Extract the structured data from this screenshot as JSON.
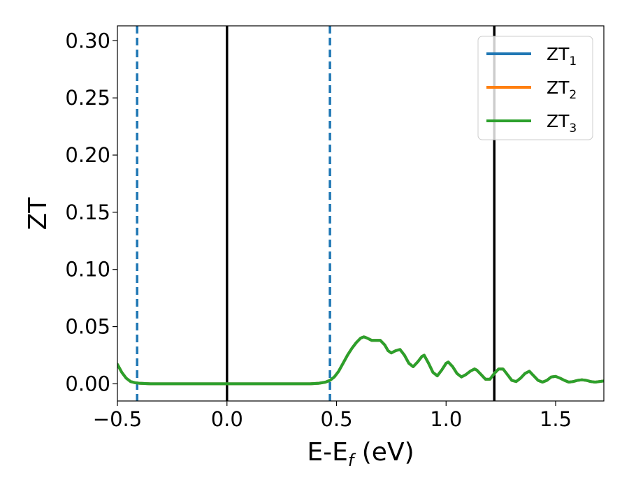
{
  "chart_data": {
    "type": "line",
    "xlabel": {
      "main": "E-E",
      "sub": "f",
      "tail": " (eV)"
    },
    "ylabel": "ZT",
    "xlim": [
      -0.5,
      1.72
    ],
    "ylim": [
      -0.015,
      0.313
    ],
    "xticks": [
      -0.5,
      0.0,
      0.5,
      1.0,
      1.5
    ],
    "xtick_labels": [
      "−0.5",
      "0.0",
      "0.5",
      "1.0",
      "1.5"
    ],
    "yticks": [
      0.0,
      0.05,
      0.1,
      0.15,
      0.2,
      0.25,
      0.3
    ],
    "ytick_labels": [
      "0.00",
      "0.05",
      "0.10",
      "0.15",
      "0.20",
      "0.25",
      "0.30"
    ],
    "grid": false,
    "legend_position": "top-right",
    "series": [
      {
        "name": {
          "main": "ZT",
          "sub": "1"
        },
        "color": "#1f77b4",
        "values_same_as": "ZT3"
      },
      {
        "name": {
          "main": "ZT",
          "sub": "2"
        },
        "color": "#ff7f0e",
        "values_same_as": "ZT3"
      },
      {
        "name": {
          "main": "ZT",
          "sub": "3"
        },
        "color": "#2ca02c",
        "x": [
          -0.5,
          -0.48,
          -0.46,
          -0.44,
          -0.42,
          -0.4,
          -0.35,
          -0.3,
          -0.2,
          -0.1,
          0.0,
          0.1,
          0.2,
          0.3,
          0.38,
          0.42,
          0.45,
          0.47,
          0.49,
          0.51,
          0.53,
          0.55,
          0.57,
          0.59,
          0.61,
          0.625,
          0.64,
          0.66,
          0.68,
          0.7,
          0.72,
          0.735,
          0.75,
          0.77,
          0.79,
          0.81,
          0.83,
          0.85,
          0.87,
          0.89,
          0.9,
          0.92,
          0.94,
          0.96,
          0.98,
          1.0,
          1.01,
          1.03,
          1.05,
          1.07,
          1.09,
          1.11,
          1.13,
          1.14,
          1.16,
          1.18,
          1.2,
          1.22,
          1.24,
          1.26,
          1.28,
          1.3,
          1.32,
          1.34,
          1.36,
          1.38,
          1.4,
          1.42,
          1.44,
          1.46,
          1.48,
          1.5,
          1.52,
          1.54,
          1.56,
          1.58,
          1.6,
          1.62,
          1.64,
          1.66,
          1.68,
          1.7,
          1.72
        ],
        "y": [
          0.017,
          0.01,
          0.005,
          0.002,
          0.001,
          0.0005,
          0.0,
          0.0,
          0.0,
          0.0,
          0.0,
          0.0,
          0.0,
          0.0,
          0.0,
          0.0005,
          0.0015,
          0.003,
          0.006,
          0.011,
          0.018,
          0.025,
          0.031,
          0.036,
          0.04,
          0.041,
          0.04,
          0.038,
          0.038,
          0.038,
          0.034,
          0.029,
          0.027,
          0.029,
          0.03,
          0.025,
          0.018,
          0.015,
          0.019,
          0.024,
          0.025,
          0.018,
          0.01,
          0.007,
          0.012,
          0.018,
          0.019,
          0.015,
          0.009,
          0.006,
          0.008,
          0.011,
          0.013,
          0.012,
          0.008,
          0.004,
          0.004,
          0.009,
          0.013,
          0.013,
          0.008,
          0.003,
          0.002,
          0.005,
          0.009,
          0.011,
          0.007,
          0.003,
          0.0015,
          0.003,
          0.006,
          0.0065,
          0.005,
          0.003,
          0.0015,
          0.002,
          0.003,
          0.0035,
          0.003,
          0.002,
          0.0015,
          0.002,
          0.0025
        ]
      }
    ],
    "vlines": [
      {
        "x": -0.41,
        "style": "dashed",
        "color": "#1f77b4"
      },
      {
        "x": 0.0,
        "style": "solid",
        "color": "#000000"
      },
      {
        "x": 0.47,
        "style": "dashed",
        "color": "#1f77b4"
      },
      {
        "x": 1.22,
        "style": "solid",
        "color": "#000000"
      }
    ]
  }
}
